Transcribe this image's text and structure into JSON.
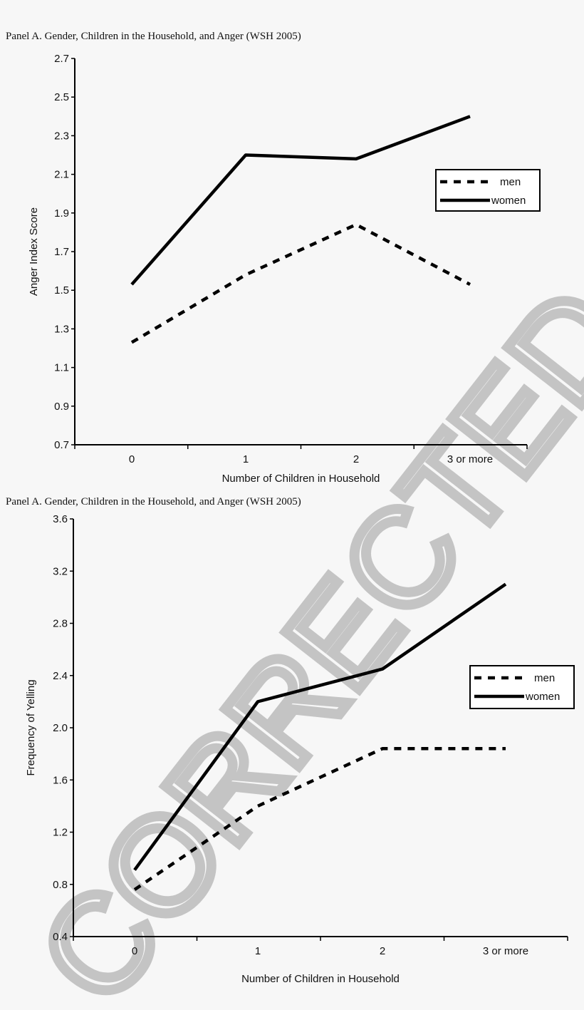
{
  "watermark": "CORRECTED PROOF",
  "chart_data": [
    {
      "type": "line",
      "title": "Panel A. Gender, Children in the Household, and Anger (WSH 2005)",
      "xlabel": "Number of Children in Household",
      "ylabel": "Anger Index Score",
      "categories": [
        "0",
        "1",
        "2",
        "3 or more"
      ],
      "ylim": [
        0.7,
        2.7
      ],
      "yticks": [
        "0.7",
        "0.9",
        "1.1",
        "1.3",
        "1.5",
        "1.7",
        "1.9",
        "2.1",
        "2.3",
        "2.5",
        "2.7"
      ],
      "grid": false,
      "legend": "right",
      "series": [
        {
          "name": "men",
          "style": "dashed",
          "values": [
            1.23,
            1.58,
            1.84,
            1.53
          ]
        },
        {
          "name": "women",
          "style": "solid",
          "values": [
            1.53,
            2.2,
            2.18,
            2.4
          ]
        }
      ]
    },
    {
      "type": "line",
      "title": "Panel A. Gender, Children in the Household, and Anger (WSH 2005)",
      "xlabel": "Number of Children in Household",
      "ylabel": "Frequency of Yelling",
      "categories": [
        "0",
        "1",
        "2",
        "3 or more"
      ],
      "ylim": [
        0.4,
        3.6
      ],
      "yticks": [
        "0.4",
        "0.8",
        "1.2",
        "1.6",
        "2.0",
        "2.4",
        "2.8",
        "3.2",
        "3.6"
      ],
      "grid": false,
      "legend": "right",
      "series": [
        {
          "name": "men",
          "style": "dashed",
          "values": [
            0.76,
            1.4,
            1.84,
            1.84
          ]
        },
        {
          "name": "women",
          "style": "solid",
          "values": [
            0.91,
            2.2,
            2.45,
            3.1
          ]
        }
      ]
    }
  ]
}
